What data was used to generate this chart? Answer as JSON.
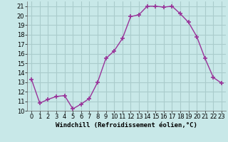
{
  "x": [
    0,
    1,
    2,
    3,
    4,
    5,
    6,
    7,
    8,
    9,
    10,
    11,
    12,
    13,
    14,
    15,
    16,
    17,
    18,
    19,
    20,
    21,
    22,
    23
  ],
  "y": [
    13.3,
    10.8,
    11.2,
    11.5,
    11.6,
    10.2,
    10.7,
    11.3,
    13.0,
    15.5,
    16.3,
    17.6,
    19.9,
    20.1,
    21.0,
    21.0,
    20.9,
    21.0,
    20.2,
    19.3,
    17.8,
    15.5,
    13.5,
    12.9
  ],
  "line_color": "#993399",
  "marker": "+",
  "markersize": 4,
  "markeredgewidth": 1.2,
  "linewidth": 1,
  "xlabel": "Windchill (Refroidissement éolien,°C)",
  "xlabel_fontsize": 6.5,
  "bg_color": "#c8e8e8",
  "grid_color": "#aacccc",
  "tick_labelsize": 6,
  "ylim": [
    10,
    21.5
  ],
  "xlim": [
    -0.5,
    23.5
  ],
  "yticks": [
    10,
    11,
    12,
    13,
    14,
    15,
    16,
    17,
    18,
    19,
    20,
    21
  ],
  "xticks": [
    0,
    1,
    2,
    3,
    4,
    5,
    6,
    7,
    8,
    9,
    10,
    11,
    12,
    13,
    14,
    15,
    16,
    17,
    18,
    19,
    20,
    21,
    22,
    23
  ]
}
